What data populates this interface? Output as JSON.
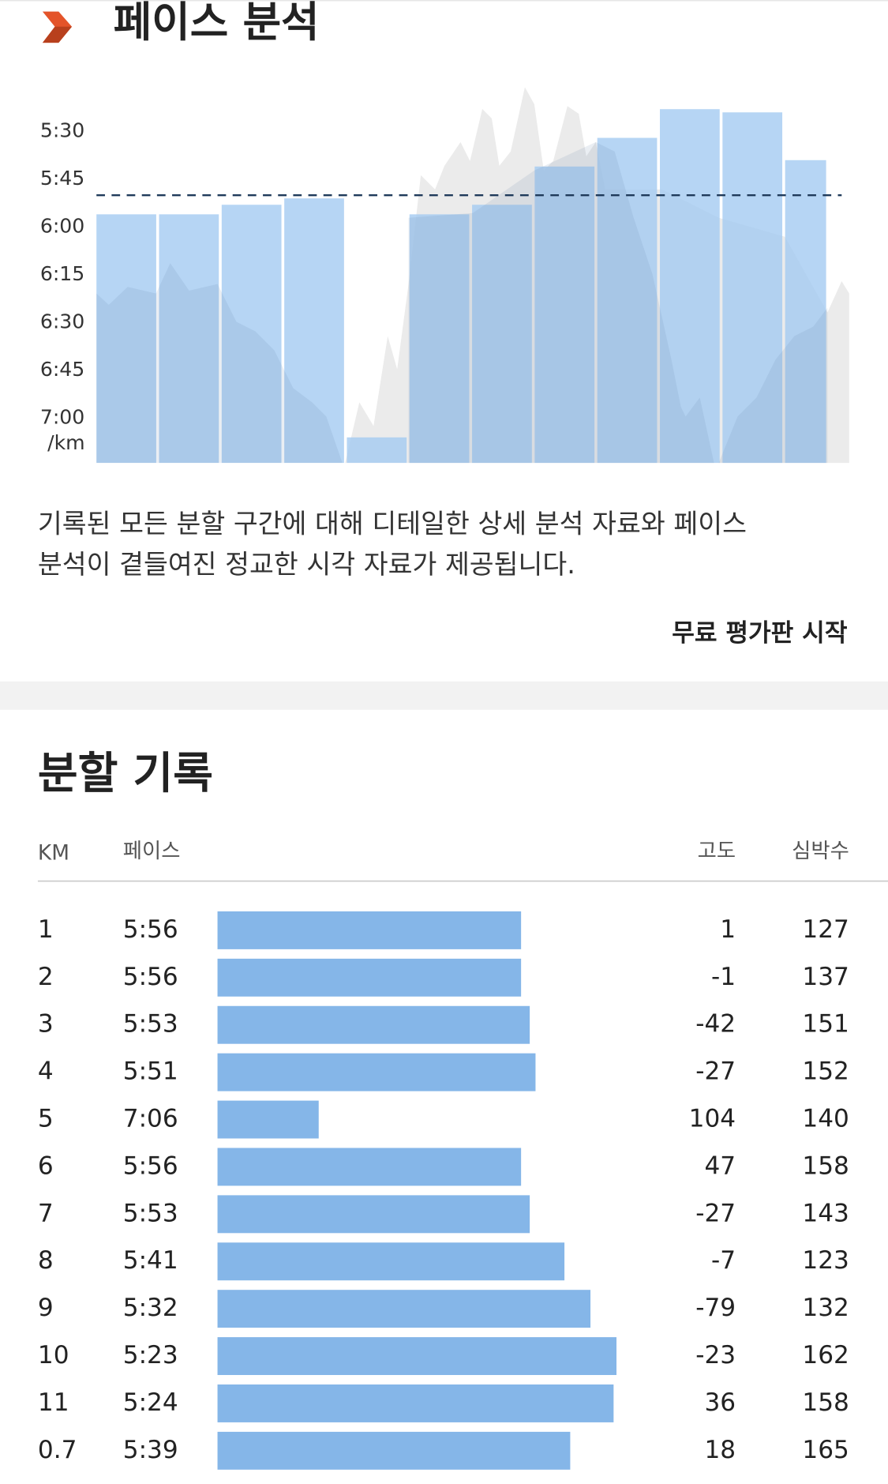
{
  "header": {
    "title": "페이스 분석"
  },
  "chart_data": {
    "type": "bar",
    "color": "#a4cbf1",
    "ylim": [
      434,
      317
    ],
    "yticks": [
      {
        "value": 330,
        "label": "5:30"
      },
      {
        "value": 345,
        "label": "5:45"
      },
      {
        "value": 360,
        "label": "6:00"
      },
      {
        "value": 375,
        "label": "6:15"
      },
      {
        "value": 390,
        "label": "6:30"
      },
      {
        "value": 405,
        "label": "6:45"
      },
      {
        "value": 420,
        "label": "7:00"
      }
    ],
    "y_axis_label": "/km",
    "average": 350
  },
  "description": [
    "기록된 모든 분할 구간에 대해 디테일한 상세 분석 자료와 페이스",
    "분석이 곁들여진 정교한 시각 자료가 제공됩니다."
  ],
  "button": "무료 평가판 시작",
  "splits": {
    "title": "분할 기록",
    "columns": [
      "KM",
      "페이스",
      "고도",
      "심박수"
    ],
    "pace_xlim": [
      461,
      321
    ],
    "color": "#85b6e8",
    "rows": [
      {
        "km": 1,
        "pace": {
          "value": 356,
          "label": "5:56"
        },
        "elevation": 1,
        "heart_rate": 127
      },
      {
        "km": 2,
        "pace": {
          "value": 356,
          "label": "5:56"
        },
        "elevation": -1,
        "heart_rate": 137
      },
      {
        "km": 3,
        "pace": {
          "value": 353,
          "label": "5:53"
        },
        "elevation": -42,
        "heart_rate": 151
      },
      {
        "km": 4,
        "pace": {
          "value": 351,
          "label": "5:51"
        },
        "elevation": -27,
        "heart_rate": 152
      },
      {
        "km": 5,
        "pace": {
          "value": 426,
          "label": "7:06"
        },
        "elevation": 104,
        "heart_rate": 140
      },
      {
        "km": 6,
        "pace": {
          "value": 356,
          "label": "5:56"
        },
        "elevation": 47,
        "heart_rate": 158
      },
      {
        "km": 7,
        "pace": {
          "value": 353,
          "label": "5:53"
        },
        "elevation": -27,
        "heart_rate": 143
      },
      {
        "km": 8,
        "pace": {
          "value": 341,
          "label": "5:41"
        },
        "elevation": -7,
        "heart_rate": 123
      },
      {
        "km": 9,
        "pace": {
          "value": 332,
          "label": "5:32"
        },
        "elevation": -79,
        "heart_rate": 132
      },
      {
        "km": 10,
        "pace": {
          "value": 323,
          "label": "5:23"
        },
        "elevation": -23,
        "heart_rate": 162
      },
      {
        "km": 11,
        "pace": {
          "value": 324,
          "label": "5:24"
        },
        "elevation": 36,
        "heart_rate": 158
      },
      {
        "km": 0.7,
        "pace": {
          "value": 339,
          "label": "5:39"
        },
        "elevation": 18,
        "heart_rate": 165
      }
    ]
  }
}
